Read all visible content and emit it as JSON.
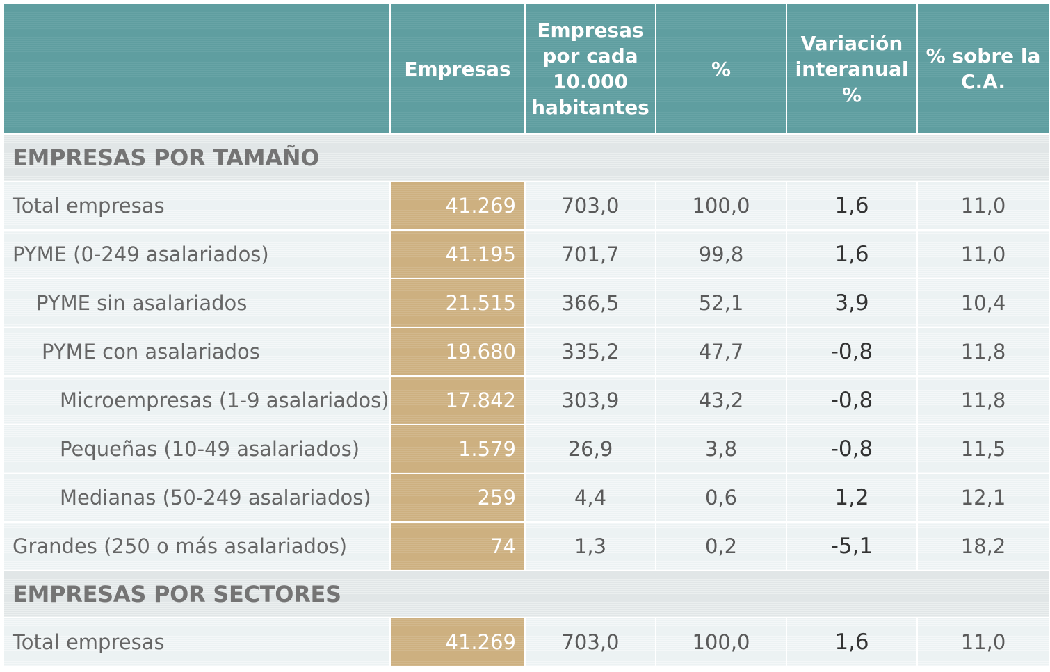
{
  "header": {
    "empty": "",
    "empresas": "Empresas",
    "por_habitantes": [
      "Empresas",
      "por cada",
      "10.000",
      "habitantes"
    ],
    "pct": "%",
    "variacion": [
      "Variación",
      "interanual",
      "%"
    ],
    "pct_ca": [
      "% sobre  la",
      "C.A."
    ]
  },
  "sections": [
    {
      "title": "EMPRESAS POR TAMAÑO",
      "rows": [
        {
          "label": "Total empresas",
          "indent": 0,
          "empresas": "41.269",
          "por_habitantes": "703,0",
          "pct": "100,0",
          "variacion": "1,6",
          "pct_ca": "11,0"
        },
        {
          "label": "PYME (0-249 asalariados)",
          "indent": 0,
          "empresas": "41.195",
          "por_habitantes": "701,7",
          "pct": "99,8",
          "variacion": "1,6",
          "pct_ca": "11,0"
        },
        {
          "label": "PYME sin asalariados",
          "indent": 1,
          "empresas": "21.515",
          "por_habitantes": "366,5",
          "pct": "52,1",
          "variacion": "3,9",
          "pct_ca": "10,4"
        },
        {
          "label": "PYME con asalariados",
          "indent": 2,
          "empresas": "19.680",
          "por_habitantes": "335,2",
          "pct": "47,7",
          "variacion": "-0,8",
          "pct_ca": "11,8"
        },
        {
          "label": "Microempresas (1-9 asalariados)",
          "indent": 3,
          "empresas": "17.842",
          "por_habitantes": "303,9",
          "pct": "43,2",
          "variacion": "-0,8",
          "pct_ca": "11,8"
        },
        {
          "label": "Pequeñas (10-49 asalariados)",
          "indent": 3,
          "empresas": "1.579",
          "por_habitantes": "26,9",
          "pct": "3,8",
          "variacion": "-0,8",
          "pct_ca": "11,5"
        },
        {
          "label": "Medianas (50-249 asalariados)",
          "indent": 3,
          "empresas": "259",
          "por_habitantes": "4,4",
          "pct": "0,6",
          "variacion": "1,2",
          "pct_ca": "12,1"
        },
        {
          "label": "Grandes (250 o más asalariados)",
          "indent": 0,
          "empresas": "74",
          "por_habitantes": "1,3",
          "pct": "0,2",
          "variacion": "-5,1",
          "pct_ca": "18,2"
        }
      ]
    },
    {
      "title": "EMPRESAS POR SECTORES",
      "rows": [
        {
          "label": "Total empresas",
          "indent": 0,
          "empresas": "41.269",
          "por_habitantes": "703,0",
          "pct": "100,0",
          "variacion": "1,6",
          "pct_ca": "11,0"
        }
      ]
    }
  ],
  "colors": {
    "header_bg": "#5f9ea0",
    "section_bg": "#e1e6e7",
    "row_bg": "#ecf2f3",
    "empresas_col_bg": "#cdb080"
  }
}
